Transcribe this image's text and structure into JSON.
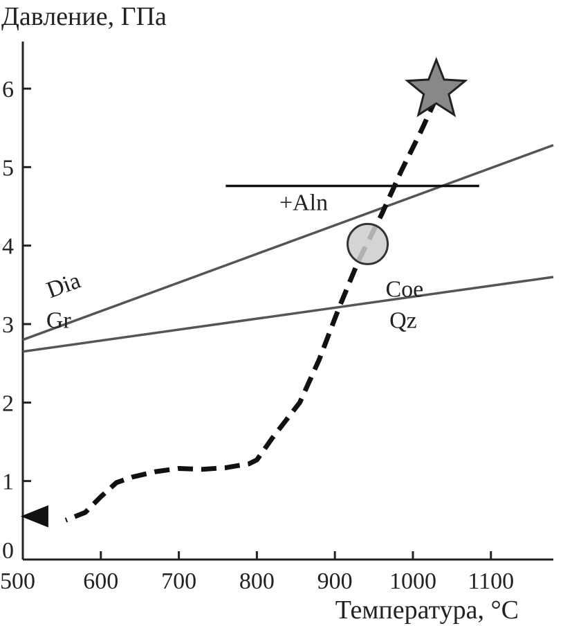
{
  "chart_data": {
    "type": "line",
    "ylabel": "Давление, ГПа",
    "xlabel": "Температура, °С",
    "xlim": [
      500,
      1180
    ],
    "ylim": [
      0,
      6.6
    ],
    "x_ticks": [
      500,
      600,
      700,
      800,
      900,
      1000,
      1100
    ],
    "y_ticks": [
      0,
      1,
      2,
      3,
      4,
      5,
      6
    ],
    "grid": false,
    "series": [
      {
        "type": "line",
        "color": "#555555",
        "points": [
          [
            500,
            2.8
          ],
          [
            1180,
            5.28
          ]
        ]
      },
      {
        "type": "line",
        "color": "#555555",
        "points": [
          [
            500,
            2.65
          ],
          [
            1180,
            3.6
          ]
        ]
      },
      {
        "type": "line",
        "color": "#111111",
        "points": [
          [
            760,
            4.76
          ],
          [
            1085,
            4.76
          ]
        ]
      },
      {
        "type": "line",
        "style": "dashed",
        "color": "#111111",
        "points": [
          [
            1030,
            5.88
          ],
          [
            1010,
            5.45
          ],
          [
            985,
            4.95
          ],
          [
            960,
            4.4
          ],
          [
            930,
            3.8
          ],
          [
            905,
            3.2
          ],
          [
            880,
            2.55
          ],
          [
            855,
            2.0
          ],
          [
            820,
            1.55
          ],
          [
            800,
            1.27
          ],
          [
            790,
            1.22
          ],
          [
            760,
            1.17
          ],
          [
            730,
            1.15
          ],
          [
            700,
            1.16
          ],
          [
            670,
            1.12
          ],
          [
            640,
            1.05
          ],
          [
            620,
            0.98
          ],
          [
            600,
            0.8
          ],
          [
            580,
            0.6
          ],
          [
            555,
            0.5
          ]
        ]
      }
    ],
    "markers": [
      {
        "shape": "star",
        "x": 1030,
        "y": 5.98,
        "color": "#888888"
      },
      {
        "shape": "circle",
        "x": 942,
        "y": 4.02,
        "color": "#cccccc"
      },
      {
        "shape": "arrowhead",
        "x": 515,
        "y": 0.55,
        "color": "#111111"
      }
    ],
    "annotations": [
      {
        "text": "Dia",
        "x": 535,
        "y": 3.33,
        "anchor": "start"
      },
      {
        "text": "Gr",
        "x": 530,
        "y": 2.95,
        "anchor": "start"
      },
      {
        "text": "Coe",
        "x": 965,
        "y": 3.35,
        "anchor": "start"
      },
      {
        "text": "Qz",
        "x": 970,
        "y": 2.95,
        "anchor": "start"
      },
      {
        "text": "+Aln",
        "x": 860,
        "y": 4.45,
        "anchor": "middle"
      }
    ]
  }
}
